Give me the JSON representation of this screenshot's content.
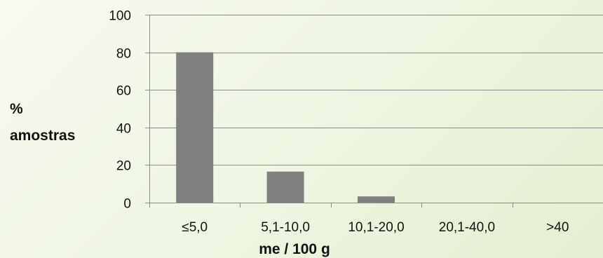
{
  "chart_data": {
    "type": "bar",
    "title": "",
    "xlabel": "me / 100 g",
    "ylabel_lines": [
      "%",
      "amostras"
    ],
    "categories": [
      "≤5,0",
      "5,1-10,0",
      "10,1-20,0",
      "20,1-40,0",
      ">40"
    ],
    "values": [
      80,
      16.5,
      3.3,
      0,
      0
    ],
    "ylim": [
      0,
      100
    ],
    "yticks": [
      0,
      20,
      40,
      60,
      80,
      100
    ],
    "grid": true,
    "legend": "none",
    "bar_color": "#808080",
    "grid_color": "#8c8c8c"
  }
}
